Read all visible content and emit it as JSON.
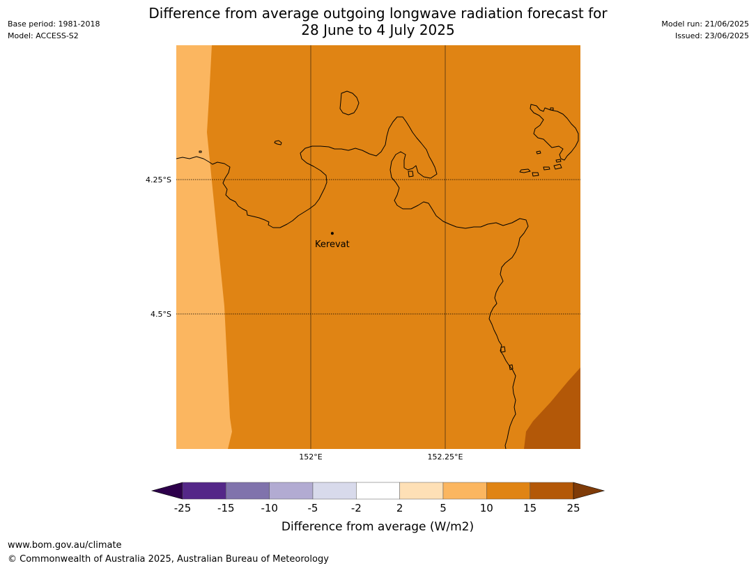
{
  "title": {
    "line1": "Difference from average outgoing longwave radiation forecast for",
    "line2": "28 June to 4 July 2025"
  },
  "meta_left": {
    "base_period": "Base period: 1981-2018",
    "model": "Model: ACCESS-S2"
  },
  "meta_right": {
    "model_run": "Model run: 21/06/2025",
    "issued": "Issued: 23/06/2025"
  },
  "map": {
    "lon_ticks": [
      {
        "label": "152°E",
        "value": 152.0
      },
      {
        "label": "152.25°E",
        "value": 152.25
      }
    ],
    "lat_ticks": [
      {
        "label": "4.25°S",
        "value": -4.25
      },
      {
        "label": "4.5°S",
        "value": -4.5
      }
    ],
    "place": {
      "name": "Kerevat",
      "lon": 152.04,
      "lat": -4.35
    },
    "region_colors": {
      "band_5_10": "#fbb660",
      "band_10_15": "#e08414",
      "band_15_25": "#b35808"
    },
    "coastline_color": "#000000"
  },
  "colorbar": {
    "label": "Difference from average (W/m2)",
    "ticks": [
      "-25",
      "-15",
      "-10",
      "-5",
      "-2",
      "2",
      "5",
      "10",
      "15",
      "25"
    ],
    "colors": [
      "#542788",
      "#8073ac",
      "#b2abd2",
      "#d8daeb",
      "#ffffff",
      "#fee0b6",
      "#fbb660",
      "#e08414",
      "#b35808"
    ],
    "extend_low_color": "#2d004b",
    "extend_high_color": "#7f3b08"
  },
  "footer": {
    "url": "www.bom.gov.au/climate",
    "copyright": "© Commonwealth of Australia 2025, Australian Bureau of Meteorology"
  }
}
